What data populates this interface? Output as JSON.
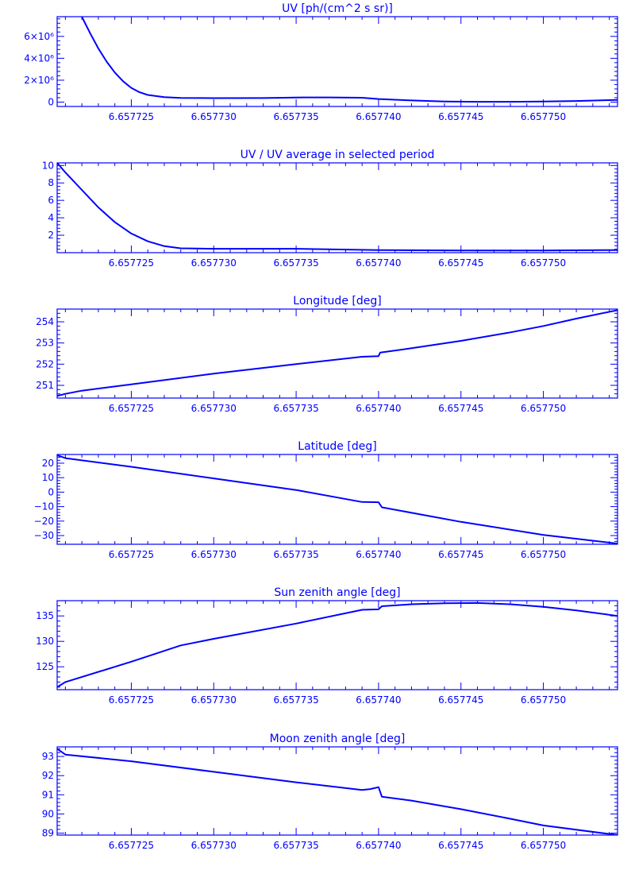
{
  "colors": {
    "line": "#0000ff",
    "background": "#ffffff"
  },
  "chart_data": [
    {
      "type": "line",
      "title": "UV [ph/(cm^2 s sr)]",
      "xlabel": "",
      "ylabel": "",
      "xlim": [
        6.6577205,
        6.6577545
      ],
      "ylim": [
        -400000,
        7800000
      ],
      "xticks": [
        6.657725,
        6.65773,
        6.657735,
        6.65774,
        6.657745,
        6.65775
      ],
      "xtick_labels": [
        "6.657725",
        "6.657730",
        "6.657735",
        "6.657740",
        "6.657745",
        "6.657750"
      ],
      "yticks": [
        0,
        2000000,
        4000000,
        6000000
      ],
      "ytick_labels": [
        "0",
        "2×10⁶",
        "4×10⁶",
        "6×10⁶"
      ],
      "grid": false,
      "series": [
        {
          "x": [
            6.657722,
            6.6577225,
            6.657723,
            6.6577235,
            6.657724,
            6.6577245,
            6.657725,
            6.6577255,
            6.657726,
            6.657727,
            6.657728,
            6.65773,
            6.657733,
            6.657735,
            6.657737,
            6.657739,
            6.65774,
            6.657742,
            6.657744,
            6.657746,
            6.657748,
            6.65775,
            6.657752,
            6.6577545
          ],
          "y": [
            7800000,
            6300000,
            4900000,
            3700000,
            2700000,
            1900000,
            1300000,
            900000,
            650000,
            450000,
            380000,
            360000,
            370000,
            420000,
            430000,
            400000,
            280000,
            150000,
            60000,
            30000,
            30000,
            50000,
            100000,
            200000
          ]
        }
      ]
    },
    {
      "type": "line",
      "title": "UV / UV average in selected period",
      "xlabel": "",
      "ylabel": "",
      "xlim": [
        6.6577205,
        6.6577545
      ],
      "ylim": [
        0,
        10.3
      ],
      "xticks": [
        6.657725,
        6.65773,
        6.657735,
        6.65774,
        6.657745,
        6.65775
      ],
      "xtick_labels": [
        "6.657725",
        "6.657730",
        "6.657735",
        "6.657740",
        "6.657745",
        "6.657750"
      ],
      "yticks": [
        2,
        4,
        6,
        8,
        10
      ],
      "ytick_labels": [
        "2",
        "4",
        "6",
        "8",
        "10"
      ],
      "grid": false,
      "series": [
        {
          "x": [
            6.6577205,
            6.657721,
            6.657722,
            6.657723,
            6.657724,
            6.657725,
            6.657726,
            6.657727,
            6.657728,
            6.65773,
            6.657735,
            6.65774,
            6.657745,
            6.65775,
            6.6577545
          ],
          "y": [
            10.3,
            9.2,
            7.2,
            5.2,
            3.5,
            2.2,
            1.3,
            0.75,
            0.5,
            0.45,
            0.45,
            0.3,
            0.25,
            0.25,
            0.3
          ]
        }
      ]
    },
    {
      "type": "line",
      "title": "Longitude [deg]",
      "xlabel": "",
      "ylabel": "",
      "xlim": [
        6.6577205,
        6.6577545
      ],
      "ylim": [
        250.4,
        254.6
      ],
      "xticks": [
        6.657725,
        6.65773,
        6.657735,
        6.65774,
        6.657745,
        6.65775
      ],
      "xtick_labels": [
        "6.657725",
        "6.657730",
        "6.657735",
        "6.657740",
        "6.657745",
        "6.657750"
      ],
      "yticks": [
        251,
        252,
        253,
        254
      ],
      "ytick_labels": [
        "251",
        "252",
        "253",
        "254"
      ],
      "grid": false,
      "series": [
        {
          "x": [
            6.6577205,
            6.657721,
            6.657722,
            6.657725,
            6.65773,
            6.657735,
            6.657739,
            6.65774,
            6.6577401,
            6.657742,
            6.657745,
            6.657748,
            6.65775,
            6.657752,
            6.6577545
          ],
          "y": [
            250.5,
            250.6,
            250.75,
            251.05,
            251.55,
            252.0,
            252.35,
            252.38,
            252.55,
            252.75,
            253.1,
            253.5,
            253.8,
            254.15,
            254.55
          ]
        }
      ]
    },
    {
      "type": "line",
      "title": "Latitude [deg]",
      "xlabel": "",
      "ylabel": "",
      "xlim": [
        6.6577205,
        6.6577545
      ],
      "ylim": [
        -36,
        26
      ],
      "xticks": [
        6.657725,
        6.65773,
        6.657735,
        6.65774,
        6.657745,
        6.65775
      ],
      "xtick_labels": [
        "6.657725",
        "6.657730",
        "6.657735",
        "6.657740",
        "6.657745",
        "6.657750"
      ],
      "yticks": [
        -30,
        -20,
        -10,
        0,
        10,
        20
      ],
      "ytick_labels": [
        "−30",
        "−20",
        "−10",
        "0",
        "10",
        "20"
      ],
      "grid": false,
      "series": [
        {
          "x": [
            6.6577205,
            6.657721,
            6.657725,
            6.65773,
            6.657735,
            6.657739,
            6.65774,
            6.6577402,
            6.657745,
            6.65775,
            6.6577545
          ],
          "y": [
            25.5,
            23.5,
            17.5,
            9.5,
            1.5,
            -6.8,
            -7.0,
            -10.5,
            -20.5,
            -29.5,
            -35.5
          ]
        }
      ]
    },
    {
      "type": "line",
      "title": "Sun zenith angle [deg]",
      "xlabel": "",
      "ylabel": "",
      "xlim": [
        6.6577205,
        6.6577545
      ],
      "ylim": [
        120.5,
        138
      ],
      "xticks": [
        6.657725,
        6.65773,
        6.657735,
        6.65774,
        6.657745,
        6.65775
      ],
      "xtick_labels": [
        "6.657725",
        "6.657730",
        "6.657735",
        "6.657740",
        "6.657745",
        "6.657750"
      ],
      "yticks": [
        125,
        130,
        135
      ],
      "ytick_labels": [
        "125",
        "130",
        "135"
      ],
      "grid": false,
      "series": [
        {
          "x": [
            6.6577205,
            6.657721,
            6.657725,
            6.657728,
            6.65773,
            6.657735,
            6.657739,
            6.65774,
            6.6577402,
            6.657742,
            6.657744,
            6.657746,
            6.657748,
            6.65775,
            6.657752,
            6.6577545
          ],
          "y": [
            121,
            122,
            126,
            129.2,
            130.5,
            133.5,
            136.2,
            136.3,
            136.9,
            137.3,
            137.5,
            137.55,
            137.3,
            136.8,
            136.1,
            135
          ]
        }
      ]
    },
    {
      "type": "line",
      "title": "Moon zenith angle [deg]",
      "xlabel": "",
      "ylabel": "",
      "xlim": [
        6.6577205,
        6.6577545
      ],
      "ylim": [
        88.9,
        93.5
      ],
      "xticks": [
        6.657725,
        6.65773,
        6.657735,
        6.65774,
        6.657745,
        6.65775
      ],
      "xtick_labels": [
        "6.657725",
        "6.657730",
        "6.657735",
        "6.657740",
        "6.657745",
        "6.657750"
      ],
      "yticks": [
        89,
        90,
        91,
        92,
        93
      ],
      "ytick_labels": [
        "89",
        "90",
        "91",
        "92",
        "93"
      ],
      "grid": false,
      "series": [
        {
          "x": [
            6.6577205,
            6.657721,
            6.657725,
            6.65773,
            6.657735,
            6.657739,
            6.6577395,
            6.65774,
            6.6577402,
            6.657742,
            6.657745,
            6.657748,
            6.65775,
            6.6577545
          ],
          "y": [
            93.4,
            93.1,
            92.75,
            92.2,
            91.65,
            91.25,
            91.3,
            91.4,
            90.9,
            90.7,
            90.25,
            89.75,
            89.4,
            88.9
          ]
        }
      ]
    }
  ]
}
